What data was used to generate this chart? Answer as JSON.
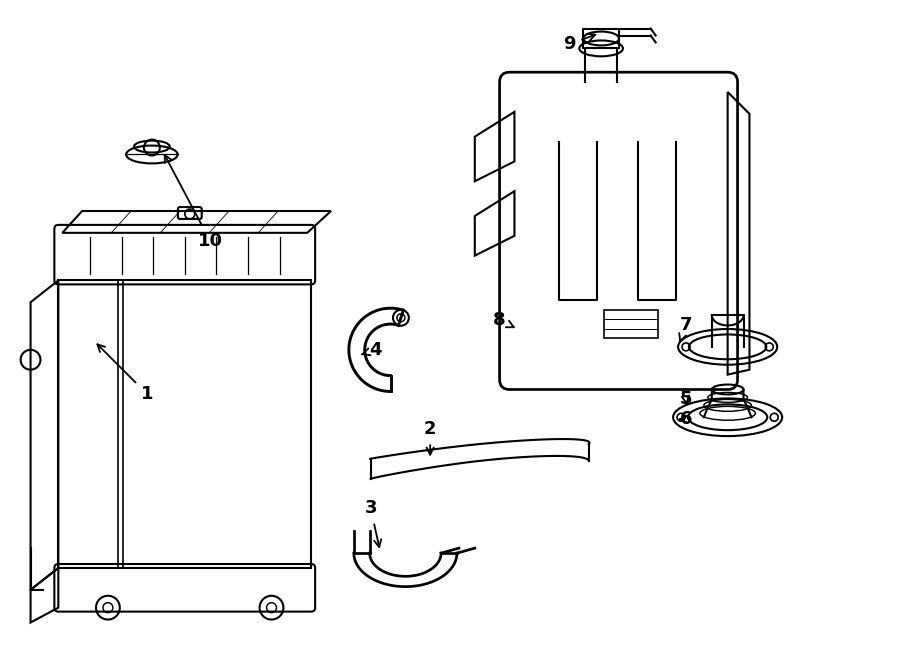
{
  "bg_color": "#ffffff",
  "line_color": "#000000",
  "label_color": "#000000",
  "line_width": 1.5
}
